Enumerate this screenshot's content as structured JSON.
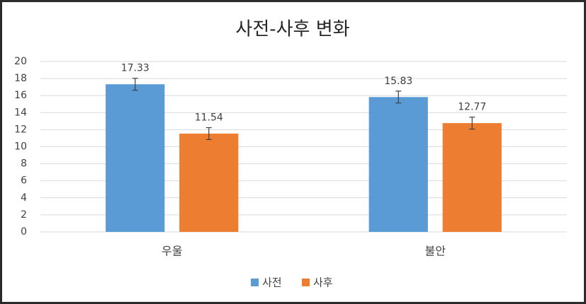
{
  "chart_data": {
    "type": "bar",
    "title": "사전-사후 변화",
    "categories": [
      "우울",
      "불안"
    ],
    "series": [
      {
        "name": "사전",
        "color": "#5b9bd5",
        "values": [
          17.33,
          15.83
        ],
        "errors": [
          0.7,
          0.7
        ]
      },
      {
        "name": "사후",
        "color": "#ed7d31",
        "values": [
          11.54,
          12.77
        ],
        "errors": [
          0.7,
          0.7
        ]
      }
    ],
    "ylim": [
      0,
      20
    ],
    "yticks": [
      0,
      2,
      4,
      6,
      8,
      10,
      12,
      14,
      16,
      18,
      20
    ],
    "grid": true,
    "legend": "bottom"
  }
}
